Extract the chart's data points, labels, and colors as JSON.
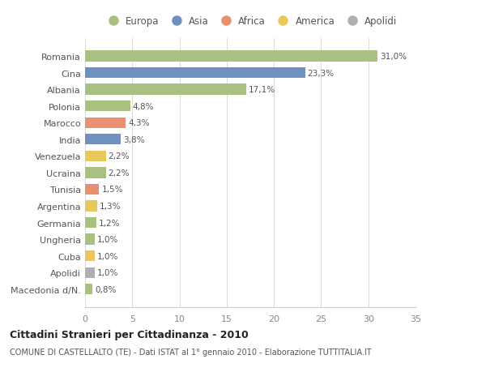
{
  "countries": [
    "Macedonia d/N.",
    "Apolidi",
    "Cuba",
    "Ungheria",
    "Germania",
    "Argentina",
    "Tunisia",
    "Ucraina",
    "Venezuela",
    "India",
    "Marocco",
    "Polonia",
    "Albania",
    "Cina",
    "Romania"
  ],
  "values": [
    0.8,
    1.0,
    1.0,
    1.0,
    1.2,
    1.3,
    1.5,
    2.2,
    2.2,
    3.8,
    4.3,
    4.8,
    17.1,
    23.3,
    31.0
  ],
  "labels": [
    "0,8%",
    "1,0%",
    "1,0%",
    "1,0%",
    "1,2%",
    "1,3%",
    "1,5%",
    "2,2%",
    "2,2%",
    "3,8%",
    "4,3%",
    "4,8%",
    "17,1%",
    "23,3%",
    "31,0%"
  ],
  "colors": [
    "#a8c080",
    "#b0afb0",
    "#e8c85a",
    "#a8c080",
    "#a8c080",
    "#e8c85a",
    "#e89070",
    "#a8c080",
    "#e8c85a",
    "#7090c0",
    "#e89070",
    "#a8c080",
    "#a8c080",
    "#7090c0",
    "#a8c080"
  ],
  "legend_labels": [
    "Europa",
    "Asia",
    "Africa",
    "America",
    "Apolidi"
  ],
  "legend_colors": [
    "#a8c080",
    "#7090c0",
    "#e89070",
    "#e8c85a",
    "#b0afb0"
  ],
  "title": "Cittadini Stranieri per Cittadinanza - 2010",
  "subtitle": "COMUNE DI CASTELLALTO (TE) - Dati ISTAT al 1° gennaio 2010 - Elaborazione TUTTITALIA.IT",
  "xlabel_ticks": [
    0,
    5,
    10,
    15,
    20,
    25,
    30,
    35
  ],
  "xlim": [
    0,
    35
  ],
  "bg_color": "#ffffff",
  "plot_bg_color": "#ffffff",
  "grid_color": "#dddddd"
}
